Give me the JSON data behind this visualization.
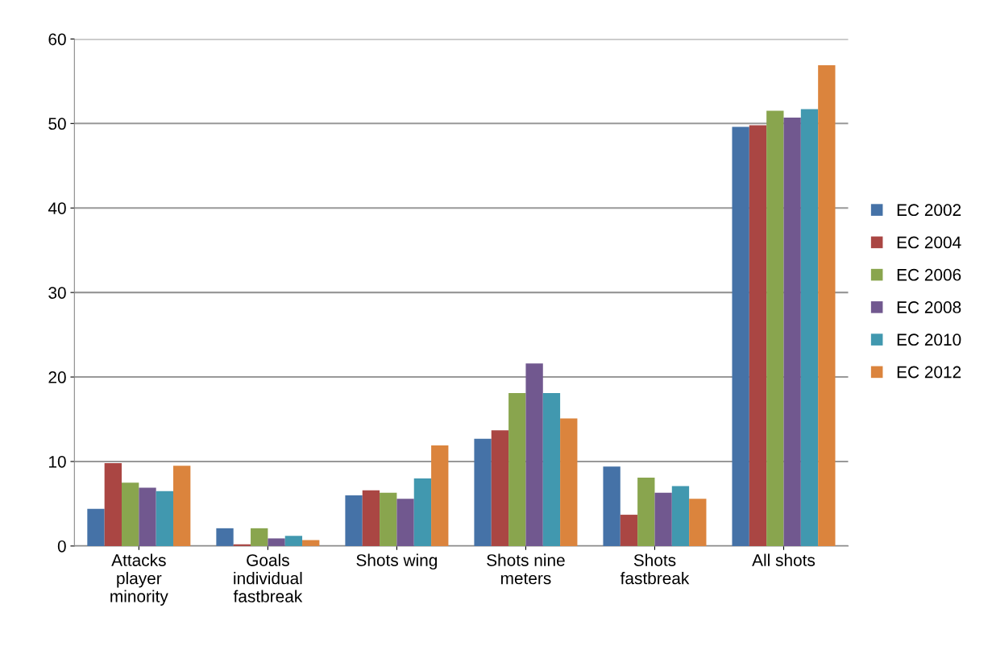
{
  "chart_data": {
    "type": "bar",
    "categories": [
      "Attacks\nplayer\nminority",
      "Goals\nindividual\nfastbreak",
      "Shots wing",
      "Shots nine\nmeters",
      "Shots\nfastbreak",
      "All shots"
    ],
    "series": [
      {
        "name": "EC 2002",
        "color": "#4572a7",
        "values": [
          4.4,
          2.1,
          6.0,
          12.7,
          9.4,
          49.6
        ]
      },
      {
        "name": "EC 2004",
        "color": "#aa4643",
        "values": [
          9.8,
          0.2,
          6.6,
          13.7,
          3.7,
          49.8
        ]
      },
      {
        "name": "EC 2006",
        "color": "#89a54e",
        "values": [
          7.5,
          2.1,
          6.3,
          18.1,
          8.1,
          51.5
        ]
      },
      {
        "name": "EC 2008",
        "color": "#71588f",
        "values": [
          6.9,
          0.9,
          5.6,
          21.6,
          6.3,
          50.7
        ]
      },
      {
        "name": "EC 2010",
        "color": "#4198af",
        "values": [
          6.5,
          1.2,
          8.0,
          18.1,
          7.1,
          51.7
        ]
      },
      {
        "name": "EC 2012",
        "color": "#db843d",
        "values": [
          9.5,
          0.7,
          11.9,
          15.1,
          5.6,
          56.9
        ]
      }
    ],
    "ylim": [
      0,
      60
    ],
    "yticks": [
      0,
      10,
      20,
      30,
      40,
      50,
      60
    ],
    "grid": "y",
    "legend": "right"
  }
}
